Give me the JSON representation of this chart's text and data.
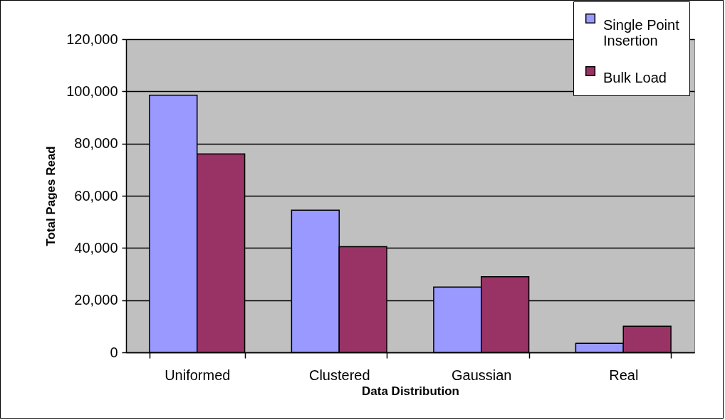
{
  "chart_data": {
    "type": "bar",
    "xlabel": "Data Distribution",
    "ylabel": "Total Pages Read",
    "categories": [
      "Uniformed",
      "Clustered",
      "Gaussian",
      "Real"
    ],
    "series": [
      {
        "name": "Single Point Insertion",
        "color": "#9999ff",
        "values": [
          98500,
          54500,
          25000,
          3500
        ]
      },
      {
        "name": "Bulk Load",
        "color": "#993366",
        "values": [
          76000,
          40500,
          29000,
          10000
        ]
      }
    ],
    "ylim": [
      0,
      120000
    ],
    "yticks": [
      0,
      {
        "value": 20000,
        "label": "20,000"
      },
      {
        "value": 40000,
        "label": "40,000"
      },
      {
        "value": 60000,
        "label": "60,000"
      },
      {
        "value": 80000,
        "label": "80,000"
      },
      {
        "value": 100000,
        "label": "100,000"
      },
      {
        "value": 120000,
        "label": "120,000"
      }
    ],
    "grid": "y",
    "legend": "top right"
  }
}
